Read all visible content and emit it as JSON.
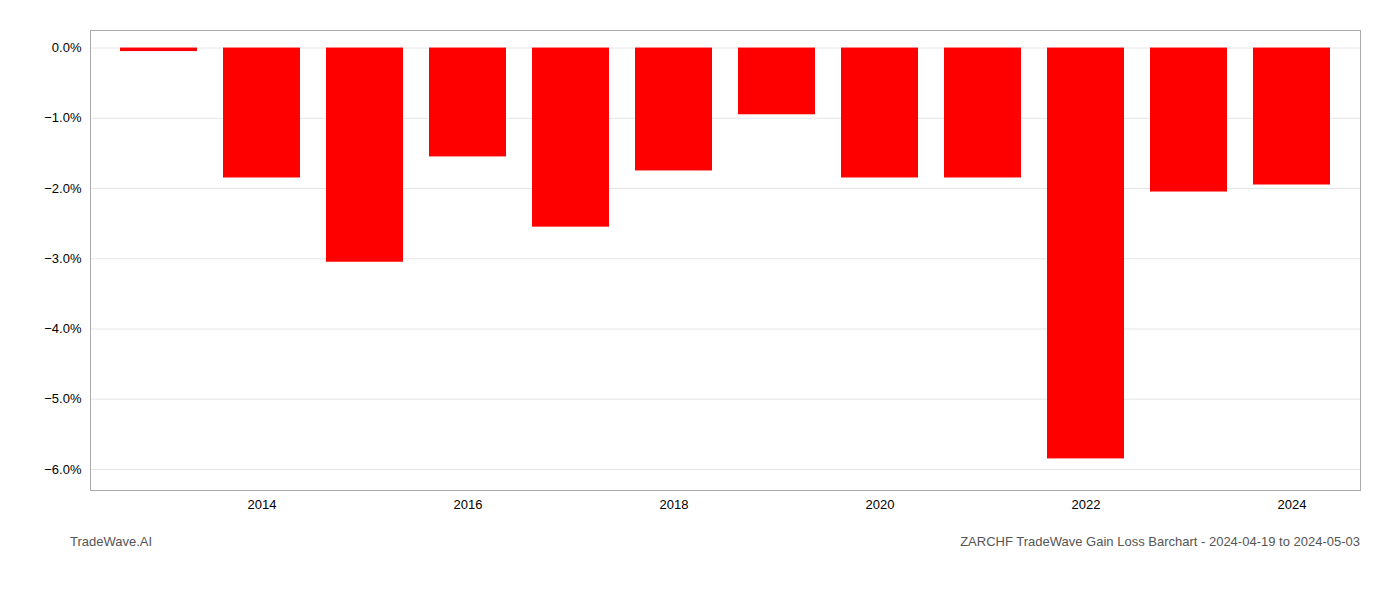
{
  "chart_data": {
    "type": "bar",
    "categories": [
      null,
      "2014",
      null,
      "2016",
      null,
      "2018",
      null,
      "2020",
      null,
      "2022",
      null,
      "2024"
    ],
    "values": [
      -0.05,
      -1.85,
      -3.05,
      -1.55,
      -2.55,
      -1.75,
      -0.95,
      -1.85,
      -1.85,
      -5.85,
      -2.05,
      -1.95
    ],
    "color": "#ff0000",
    "ylim": [
      -6.3,
      0.25
    ],
    "yticks": [
      {
        "value": 0.0,
        "label": "0.0%"
      },
      {
        "value": -1.0,
        "label": "−1.0%"
      },
      {
        "value": -2.0,
        "label": "−2.0%"
      },
      {
        "value": -3.0,
        "label": "−3.0%"
      },
      {
        "value": -4.0,
        "label": "−4.0%"
      },
      {
        "value": -5.0,
        "label": "−5.0%"
      },
      {
        "value": -6.0,
        "label": "−6.0%"
      }
    ],
    "grid": true,
    "annotations": [
      "TradeWave.AI",
      "ZARCHF TradeWave Gain Loss Barchart - 2024-04-19 to 2024-05-03"
    ]
  }
}
